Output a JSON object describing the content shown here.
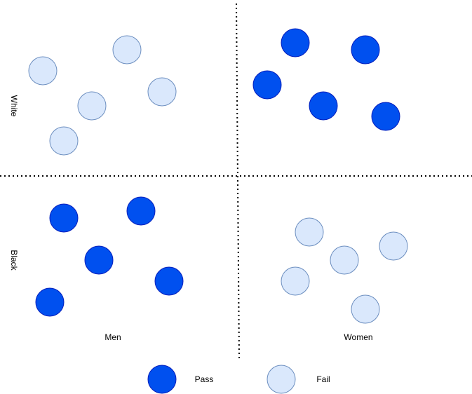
{
  "rows": [
    "White",
    "Black"
  ],
  "columns": [
    "Men",
    "Women"
  ],
  "legend": [
    "Pass",
    "Fail"
  ]
}
